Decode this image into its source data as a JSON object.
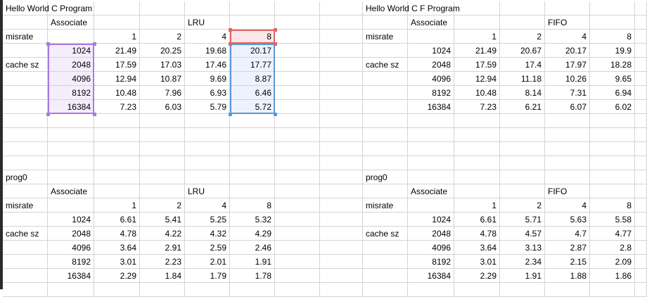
{
  "blocks": [
    {
      "title": "Hello World C Program",
      "assoc_label": "Associate",
      "policy": "LRU",
      "misrate_label": "misrate",
      "cache_label": "cache sz",
      "ways": [
        "1",
        "2",
        "4",
        "8"
      ],
      "rows": [
        {
          "size": "1024",
          "vals": [
            "21.49",
            "20.25",
            "19.68",
            "20.17"
          ]
        },
        {
          "size": "2048",
          "vals": [
            "17.59",
            "17.03",
            "17.46",
            "17.77"
          ]
        },
        {
          "size": "4096",
          "vals": [
            "12.94",
            "10.87",
            "9.69",
            "8.87"
          ]
        },
        {
          "size": "8192",
          "vals": [
            "10.48",
            "7.96",
            "6.93",
            "6.46"
          ]
        },
        {
          "size": "16384",
          "vals": [
            "7.23",
            "6.03",
            "5.79",
            "5.72"
          ]
        }
      ]
    },
    {
      "title": "Hello World C F Program",
      "assoc_label": "Associate",
      "policy": "FIFO",
      "misrate_label": "misrate",
      "cache_label": "cache sz",
      "ways": [
        "1",
        "2",
        "4",
        "8"
      ],
      "rows": [
        {
          "size": "1024",
          "vals": [
            "21.49",
            "20.67",
            "20.17",
            "19.9"
          ]
        },
        {
          "size": "2048",
          "vals": [
            "17.59",
            "17.4",
            "17.97",
            "18.28"
          ]
        },
        {
          "size": "4096",
          "vals": [
            "12.94",
            "11.18",
            "10.26",
            "9.65"
          ]
        },
        {
          "size": "8192",
          "vals": [
            "10.48",
            "8.14",
            "7.31",
            "6.94"
          ]
        },
        {
          "size": "16384",
          "vals": [
            "7.23",
            "6.21",
            "6.07",
            "6.02"
          ]
        }
      ]
    },
    {
      "title": "prog0",
      "assoc_label": "Associate",
      "policy": "LRU",
      "misrate_label": "misrate",
      "cache_label": "cache sz",
      "ways": [
        "1",
        "2",
        "4",
        "8"
      ],
      "rows": [
        {
          "size": "1024",
          "vals": [
            "6.61",
            "5.41",
            "5.25",
            "5.32"
          ]
        },
        {
          "size": "2048",
          "vals": [
            "4.78",
            "4.22",
            "4.32",
            "4.29"
          ]
        },
        {
          "size": "4096",
          "vals": [
            "3.64",
            "2.91",
            "2.59",
            "2.46"
          ]
        },
        {
          "size": "8192",
          "vals": [
            "3.01",
            "2.23",
            "2.01",
            "1.91"
          ]
        },
        {
          "size": "16384",
          "vals": [
            "2.29",
            "1.84",
            "1.79",
            "1.78"
          ]
        }
      ]
    },
    {
      "title": "prog0",
      "assoc_label": "Associate",
      "policy": "FIFO",
      "misrate_label": "misrate",
      "cache_label": "cache sz",
      "ways": [
        "1",
        "2",
        "4",
        "8"
      ],
      "rows": [
        {
          "size": "1024",
          "vals": [
            "6.61",
            "5.71",
            "5.63",
            "5.58"
          ]
        },
        {
          "size": "2048",
          "vals": [
            "4.78",
            "4.57",
            "4.7",
            "4.77"
          ]
        },
        {
          "size": "4096",
          "vals": [
            "3.64",
            "3.13",
            "2.87",
            "2.8"
          ]
        },
        {
          "size": "8192",
          "vals": [
            "3.01",
            "2.34",
            "2.15",
            "2.09"
          ]
        },
        {
          "size": "16384",
          "vals": [
            "2.29",
            "1.91",
            "1.88",
            "1.86"
          ]
        }
      ]
    }
  ],
  "selection_colors": {
    "purple": "#a97be0",
    "blue": "#5b9bd5",
    "red": "#e06666"
  }
}
